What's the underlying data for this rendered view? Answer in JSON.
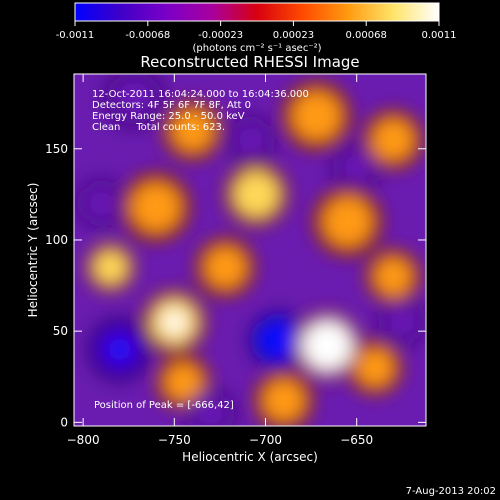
{
  "colorbar": {
    "stops": [
      "#0000ff",
      "#3f00c8",
      "#7a00c8",
      "#a800a0",
      "#d80010",
      "#ff4a00",
      "#ff9a10",
      "#ffe46a",
      "#ffffff"
    ],
    "tick_labels": [
      "-0.0011",
      "-0.00068",
      "-0.00023",
      "0.00023",
      "0.00068",
      "0.0011"
    ],
    "unit_label": "(photons cm⁻² s⁻¹ asec⁻²)"
  },
  "title": "Reconstructed RHESSI Image",
  "info": {
    "time_range": "12-Oct-2011 16:04:24.000 to 16:04:36.000",
    "detectors": "Detectors: 4F 5F 6F 7F 8F, Att 0",
    "energy_range": "Energy Range: 25.0 - 50.0 keV",
    "clean_counts": "Clean     Total counts: 623.",
    "peak_position": "Position of Peak = [-666,42]"
  },
  "axes": {
    "xlabel": "Heliocentric X (arcsec)",
    "ylabel": "Heliocentric Y (arcsec)",
    "xlim": [
      -805,
      -612
    ],
    "ylim": [
      -2,
      191
    ],
    "xticks": [
      -800,
      -750,
      -700,
      -650
    ],
    "yticks": [
      0,
      50,
      100,
      150
    ]
  },
  "date_stamp": "7-Aug-2013 20:02",
  "image_data": {
    "colormap": [
      "#1018ff",
      "#4a00d0",
      "#6a18b8",
      "#8a2090",
      "#c00018",
      "#ff4a00",
      "#ff9a18",
      "#ffd85a",
      "#ffffff"
    ],
    "blobs": [
      {
        "x": -666,
        "y": 42,
        "level": 1.0,
        "r": 14
      },
      {
        "x": -750,
        "y": 55,
        "level": 0.82,
        "r": 13
      },
      {
        "x": -785,
        "y": 85,
        "level": 0.7,
        "r": 10
      },
      {
        "x": -760,
        "y": 118,
        "level": 0.62,
        "r": 14
      },
      {
        "x": -705,
        "y": 125,
        "level": 0.66,
        "r": 13
      },
      {
        "x": -655,
        "y": 110,
        "level": 0.6,
        "r": 14
      },
      {
        "x": -630,
        "y": 80,
        "level": 0.58,
        "r": 11
      },
      {
        "x": -722,
        "y": 85,
        "level": 0.5,
        "r": 12
      },
      {
        "x": -672,
        "y": 168,
        "level": 0.55,
        "r": 14
      },
      {
        "x": -740,
        "y": 160,
        "level": 0.42,
        "r": 12
      },
      {
        "x": -630,
        "y": 155,
        "level": 0.52,
        "r": 12
      },
      {
        "x": -640,
        "y": 30,
        "level": 0.45,
        "r": 11
      },
      {
        "x": -745,
        "y": 22,
        "level": 0.4,
        "r": 11
      },
      {
        "x": -690,
        "y": 12,
        "level": 0.38,
        "r": 12
      },
      {
        "x": -780,
        "y": 40,
        "level": -0.8,
        "r": 13
      },
      {
        "x": -693,
        "y": 45,
        "level": -0.95,
        "r": 12
      },
      {
        "x": -772,
        "y": 178,
        "level": -0.55,
        "r": 12
      },
      {
        "x": -650,
        "y": 140,
        "level": -0.45,
        "r": 10
      },
      {
        "x": -625,
        "y": 55,
        "level": -0.5,
        "r": 10
      },
      {
        "x": -730,
        "y": 5,
        "level": -0.5,
        "r": 10
      },
      {
        "x": -708,
        "y": 155,
        "level": -0.4,
        "r": 10
      },
      {
        "x": -790,
        "y": 120,
        "level": -0.4,
        "r": 10
      }
    ]
  }
}
